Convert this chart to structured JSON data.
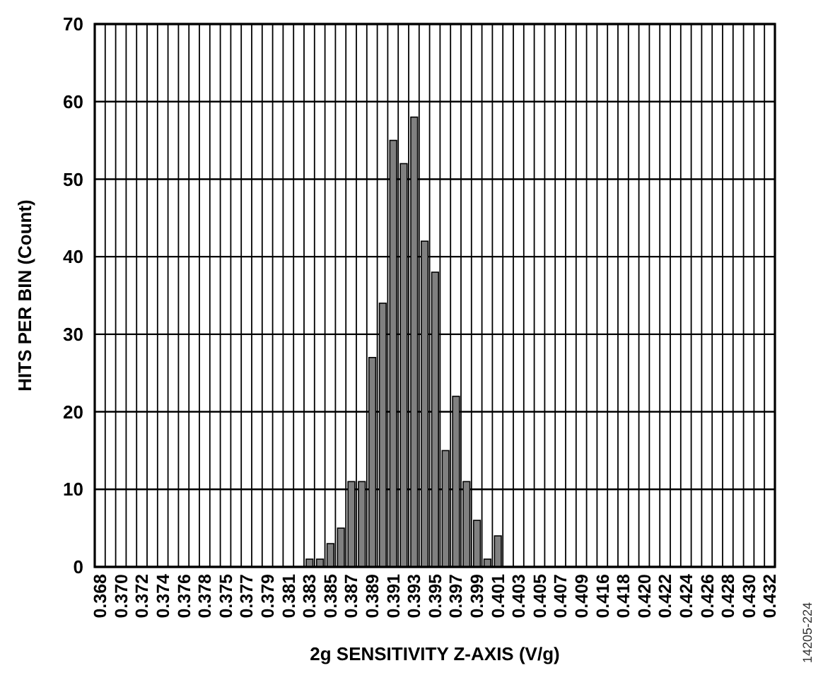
{
  "chart_data": {
    "type": "bar",
    "xlabel": "2g SENSITIVITY Z-AXIS (V/g)",
    "ylabel": "HITS PER BIN (Count)",
    "categories": [
      "0.368",
      null,
      "0.370",
      null,
      "0.372",
      null,
      "0.374",
      null,
      "0.376",
      null,
      "0.378",
      null,
      "0.375",
      null,
      "0.377",
      null,
      "0.379",
      null,
      "0.381",
      null,
      "0.383",
      null,
      "0.385",
      null,
      "0.387",
      null,
      "0.389",
      null,
      "0.391",
      null,
      "0.393",
      null,
      "0.395",
      null,
      "0.397",
      null,
      "0.399",
      null,
      "0.401",
      null,
      "0.403",
      null,
      "0.405",
      null,
      "0.407",
      null,
      "0.409",
      null,
      "0.416",
      null,
      "0.418",
      null,
      "0.420",
      null,
      "0.422",
      null,
      "0.424",
      null,
      "0.426",
      null,
      "0.428",
      null,
      "0.430",
      null,
      "0.432"
    ],
    "values": [
      0,
      0,
      0,
      0,
      0,
      0,
      0,
      0,
      0,
      0,
      0,
      0,
      0,
      0,
      0,
      0,
      0,
      0,
      0,
      0,
      1,
      1,
      3,
      5,
      11,
      11,
      27,
      34,
      55,
      52,
      58,
      42,
      38,
      15,
      22,
      11,
      6,
      1,
      4,
      0,
      0,
      0,
      0,
      0,
      0,
      0,
      0,
      0,
      0,
      0,
      0,
      0,
      0,
      0,
      0,
      0,
      0,
      0,
      0,
      0,
      0,
      0,
      0,
      0,
      0
    ],
    "color": "#808080",
    "ylim": [
      0,
      70
    ],
    "yticks": [
      0,
      10,
      20,
      30,
      40,
      50,
      60,
      70
    ],
    "grid": true,
    "annotations": [
      "14205-224"
    ]
  }
}
